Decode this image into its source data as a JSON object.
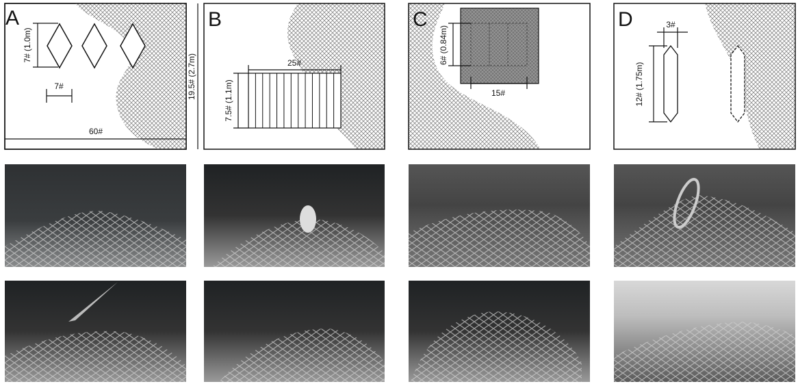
{
  "panels": [
    {
      "label": "A",
      "annotations": [
        "7# (1.0m)",
        "7#",
        "60#",
        "19.5# (2.7m)"
      ]
    },
    {
      "label": "B",
      "annotations": [
        "25#",
        "7.5# (1.1m)"
      ]
    },
    {
      "label": "C",
      "annotations": [
        "6# (0.84m)",
        "15#"
      ]
    },
    {
      "label": "D",
      "annotations": [
        "3#",
        "12# (1.75m)"
      ]
    }
  ]
}
